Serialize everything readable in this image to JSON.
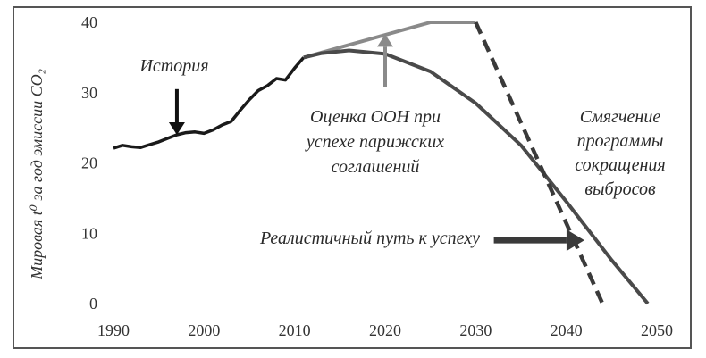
{
  "chart_data": {
    "type": "line",
    "ylabel": "Мировая t⁰ за год эмиссии CO₂",
    "xlim": [
      1990,
      2050
    ],
    "ylim": [
      0,
      40
    ],
    "x_ticks": [
      "1990",
      "2000",
      "2010",
      "2020",
      "2030",
      "2040",
      "2050"
    ],
    "y_ticks": [
      "0",
      "10",
      "20",
      "30",
      "40"
    ],
    "grid": false,
    "series": [
      {
        "name": "История",
        "style": "solid",
        "color": "#1a1a1a",
        "points": [
          [
            1990,
            22.1
          ],
          [
            1991,
            22.5
          ],
          [
            1992,
            22.3
          ],
          [
            1993,
            22.2
          ],
          [
            1994,
            22.6
          ],
          [
            1995,
            23.0
          ],
          [
            1996,
            23.5
          ],
          [
            1997,
            24.0
          ],
          [
            1998,
            24.3
          ],
          [
            1999,
            24.4
          ],
          [
            2000,
            24.2
          ],
          [
            2001,
            24.7
          ],
          [
            2002,
            25.4
          ],
          [
            2003,
            25.9
          ],
          [
            2004,
            27.5
          ],
          [
            2005,
            29.0
          ],
          [
            2006,
            30.3
          ],
          [
            2007,
            31.0
          ],
          [
            2008,
            32.0
          ],
          [
            2009,
            31.8
          ],
          [
            2010,
            33.5
          ],
          [
            2011,
            35.0
          ]
        ]
      },
      {
        "name": "Оценка ООН при успехе парижских соглашений",
        "style": "solid",
        "color": "#8a8a8a",
        "points": [
          [
            2011,
            35.0
          ],
          [
            2025,
            40.0
          ],
          [
            2030,
            40.0
          ]
        ]
      },
      {
        "name": "Реалистичный путь к успеху",
        "style": "solid",
        "color": "#4a4a4a",
        "points": [
          [
            2011,
            35.0
          ],
          [
            2013,
            35.6
          ],
          [
            2016,
            36.0
          ],
          [
            2020,
            35.5
          ],
          [
            2025,
            33.0
          ],
          [
            2030,
            28.5
          ],
          [
            2035,
            22.5
          ],
          [
            2040,
            14.5
          ],
          [
            2045,
            6.2
          ],
          [
            2049,
            0.0
          ]
        ]
      },
      {
        "name": "Смягчение программы сокращения выбросов",
        "style": "dashed",
        "color": "#3a3a3a",
        "points": [
          [
            2030,
            40.0
          ],
          [
            2044,
            0.0
          ]
        ]
      }
    ],
    "annotations": [
      {
        "text": [
          "История"
        ],
        "arrow_to": [
          1997,
          24.0
        ],
        "arrow_from": [
          1997,
          30.5
        ]
      },
      {
        "text": [
          "Оценка ООН при",
          "успехе парижских",
          "соглашений"
        ],
        "arrow_to": [
          2020,
          38.3
        ],
        "arrow_from": [
          2020,
          30.8
        ]
      },
      {
        "text": [
          "Смягчение",
          "программы",
          "сокращения",
          "выбросов"
        ]
      },
      {
        "text": [
          "Реалистичный путь к успеху"
        ],
        "arrow_to": [
          2042,
          9.0
        ],
        "arrow_from": [
          2032,
          9.0
        ]
      }
    ]
  }
}
